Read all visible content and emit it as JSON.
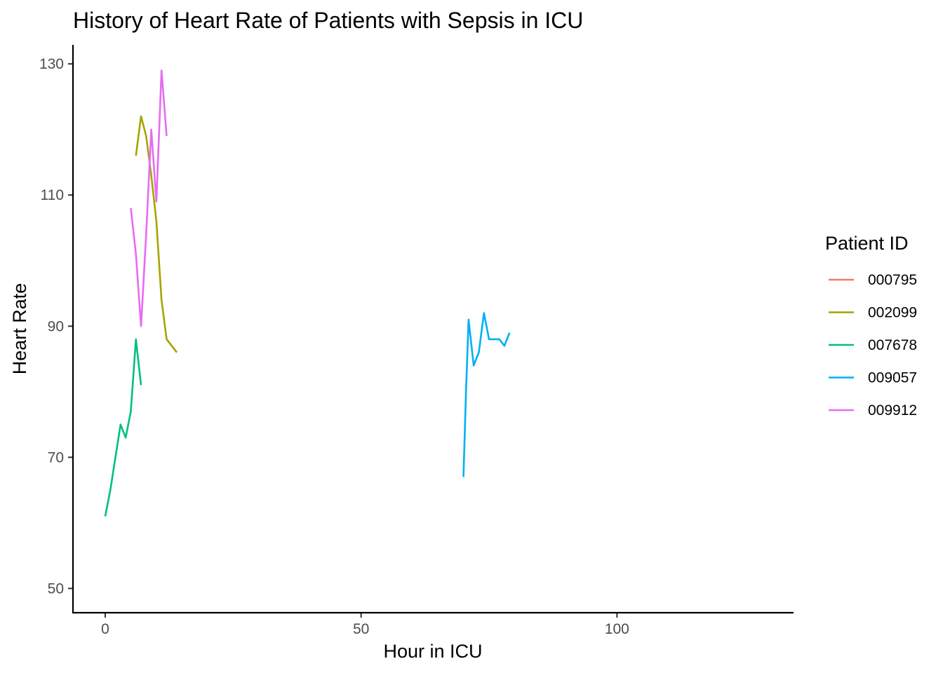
{
  "chart_data": {
    "type": "line",
    "title": "History of Heart Rate of Patients with Sepsis in ICU",
    "xlabel": "Hour in ICU",
    "ylabel": "Heart Rate",
    "xlim": [
      -6.3,
      134.5
    ],
    "ylim": [
      46.3,
      132.9
    ],
    "x_ticks": [
      0,
      50,
      100
    ],
    "y_ticks": [
      50,
      70,
      90,
      110,
      130
    ],
    "grid": false,
    "legend": {
      "title": "Patient ID",
      "position": "right"
    },
    "series": [
      {
        "name": "000795",
        "color": "#F8766D",
        "points": []
      },
      {
        "name": "002099",
        "color": "#A3A500",
        "points": [
          [
            6,
            116
          ],
          [
            7,
            122
          ],
          [
            8,
            119
          ],
          [
            9,
            113
          ],
          [
            10,
            106
          ],
          [
            11,
            94
          ],
          [
            12,
            88
          ],
          [
            14,
            86
          ]
        ]
      },
      {
        "name": "007678",
        "color": "#00BF7D",
        "points": [
          [
            0,
            61
          ],
          [
            1,
            65
          ],
          [
            2,
            70
          ],
          [
            3,
            75
          ],
          [
            4,
            73
          ],
          [
            5,
            77
          ],
          [
            6,
            88
          ],
          [
            7,
            81
          ]
        ]
      },
      {
        "name": "009057",
        "color": "#00B0F6",
        "points": [
          [
            70,
            67
          ],
          [
            70.5,
            80
          ],
          [
            71,
            91
          ],
          [
            72,
            84
          ],
          [
            73,
            86
          ],
          [
            74,
            92
          ],
          [
            75,
            88
          ],
          [
            76,
            88
          ],
          [
            77,
            88
          ],
          [
            78,
            87
          ],
          [
            79,
            89
          ]
        ]
      },
      {
        "name": "009912",
        "color": "#E76BF3",
        "points": [
          [
            5,
            108
          ],
          [
            6,
            101
          ],
          [
            7,
            90
          ],
          [
            8,
            104
          ],
          [
            9,
            120
          ],
          [
            10,
            109
          ],
          [
            11,
            129
          ],
          [
            12,
            119
          ]
        ]
      }
    ]
  }
}
